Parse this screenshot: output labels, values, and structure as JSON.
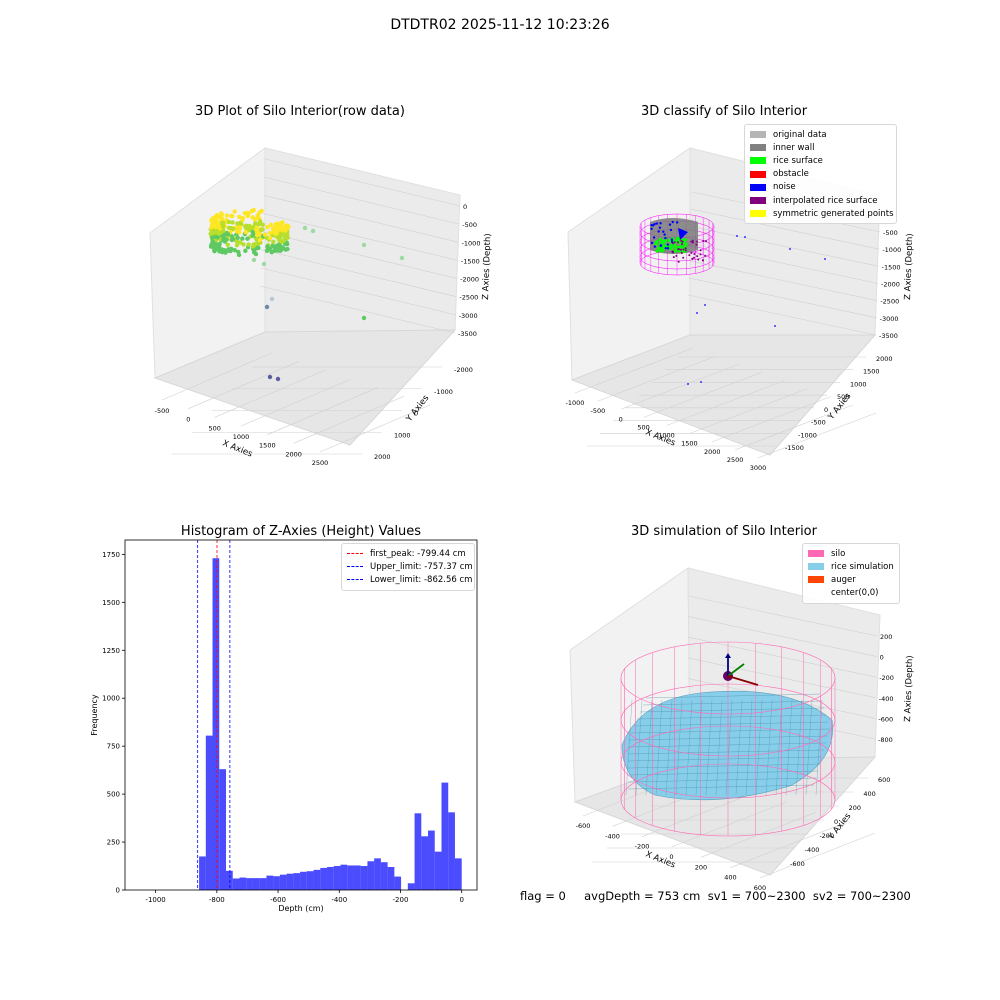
{
  "figure": {
    "suptitle": "DTDTR02 2025-11-12 10:23:26"
  },
  "chart_data": [
    {
      "type": "scatter",
      "title": "3D Plot of Silo Interior(row data)",
      "xlabel": "X Axies",
      "ylabel": "Y Axies",
      "zlabel": "Z Axies (Depth)",
      "x_ticks": [
        "-500",
        "0",
        "500",
        "1000",
        "1500",
        "2000",
        "2500"
      ],
      "y_ticks": [
        "-2000",
        "-1000",
        "0",
        "1000",
        "2000"
      ],
      "z_ticks": [
        "0",
        "-500",
        "-1000",
        "-1500",
        "-2000",
        "-2500",
        "-3000",
        "-3500"
      ],
      "colormap": [
        "#440154",
        "#3b528b",
        "#21918c",
        "#5ec962",
        "#fde725"
      ]
    },
    {
      "type": "scatter",
      "title": "3D classify of Silo Interior",
      "xlabel": "X Axies",
      "ylabel": "Y Axies",
      "zlabel": "Z Axies (Depth)",
      "x_ticks": [
        "-1000",
        "-500",
        "0",
        "500",
        "1000",
        "1500",
        "2000",
        "2500",
        "3000"
      ],
      "y_ticks": [
        "-1500",
        "-1000",
        "-500",
        "0",
        "500",
        "1000",
        "1500",
        "2000"
      ],
      "z_ticks": [
        "-500",
        "-1000",
        "-1500",
        "-2000",
        "-2500",
        "-3000",
        "-3500"
      ],
      "legend": [
        {
          "label": "original data",
          "color": "#b4b4b4"
        },
        {
          "label": "inner wall",
          "color": "#808080"
        },
        {
          "label": "rice surface",
          "color": "#00ff00"
        },
        {
          "label": "obstacle",
          "color": "#ff0000"
        },
        {
          "label": "noise",
          "color": "#0000ff"
        },
        {
          "label": "interpolated rice surface",
          "color": "#800080"
        },
        {
          "label": "symmetric generated points",
          "color": "#ffff00"
        }
      ]
    },
    {
      "type": "bar",
      "title": "Histogram of Z-Axies (Height) Values",
      "xlabel": "Depth (cm)",
      "ylabel": "Frequency",
      "xlim": [
        -1100,
        50
      ],
      "ylim": [
        0,
        1825
      ],
      "x_ticks": [
        -1000,
        -800,
        -600,
        -400,
        -200,
        0
      ],
      "y_ticks": [
        0,
        250,
        500,
        750,
        1000,
        1250,
        1500,
        1750
      ],
      "bin_width": 22,
      "bins": [
        [
          -880,
          0
        ],
        [
          -858,
          175
        ],
        [
          -836,
          805
        ],
        [
          -814,
          1730
        ],
        [
          -792,
          630
        ],
        [
          -770,
          100
        ],
        [
          -748,
          60
        ],
        [
          -726,
          65
        ],
        [
          -704,
          62
        ],
        [
          -682,
          62
        ],
        [
          -660,
          62
        ],
        [
          -638,
          75
        ],
        [
          -616,
          72
        ],
        [
          -594,
          80
        ],
        [
          -572,
          85
        ],
        [
          -550,
          88
        ],
        [
          -528,
          95
        ],
        [
          -506,
          98
        ],
        [
          -484,
          105
        ],
        [
          -462,
          115
        ],
        [
          -440,
          120
        ],
        [
          -418,
          125
        ],
        [
          -396,
          132
        ],
        [
          -374,
          128
        ],
        [
          -352,
          128
        ],
        [
          -330,
          125
        ],
        [
          -308,
          150
        ],
        [
          -286,
          165
        ],
        [
          -264,
          145
        ],
        [
          -242,
          120
        ],
        [
          -220,
          70
        ],
        [
          -198,
          0
        ],
        [
          -176,
          35
        ],
        [
          -154,
          400
        ],
        [
          -132,
          280
        ],
        [
          -110,
          310
        ],
        [
          -88,
          200
        ],
        [
          -66,
          560
        ],
        [
          -44,
          405
        ],
        [
          -22,
          165
        ]
      ],
      "bar_color": "#0000ff",
      "vlines": [
        {
          "label": "first_peak: -799.44 cm",
          "x": -799.44,
          "color": "#ff0000"
        },
        {
          "label": "Upper_limit: -757.37 cm",
          "x": -757.37,
          "color": "#0000ff"
        },
        {
          "label": "Lower_limit: -862.56 cm",
          "x": -862.56,
          "color": "#0000ff"
        }
      ]
    },
    {
      "type": "scatter",
      "title": "3D simulation of Silo Interior",
      "xlabel": "X Axies",
      "ylabel": "Y Axies",
      "zlabel": "Z Axies (Depth)",
      "x_ticks": [
        "-600",
        "-400",
        "-200",
        "0",
        "200",
        "400",
        "600"
      ],
      "y_ticks": [
        "-600",
        "-400",
        "-200",
        "0",
        "200",
        "400",
        "600"
      ],
      "z_ticks": [
        "200",
        "0",
        "-200",
        "-400",
        "-600",
        "-800"
      ],
      "legend": [
        {
          "label": "silo",
          "color": "#ff69b4"
        },
        {
          "label": "rice simulation",
          "color": "#87ceeb"
        },
        {
          "label": "auger",
          "color": "#ff4500"
        },
        {
          "label": "center(0,0)",
          "color": ""
        }
      ]
    }
  ],
  "status_line": "flag = 0     avgDepth = 753 cm  sv1 = 700~2300  sv2 = 700~2300"
}
